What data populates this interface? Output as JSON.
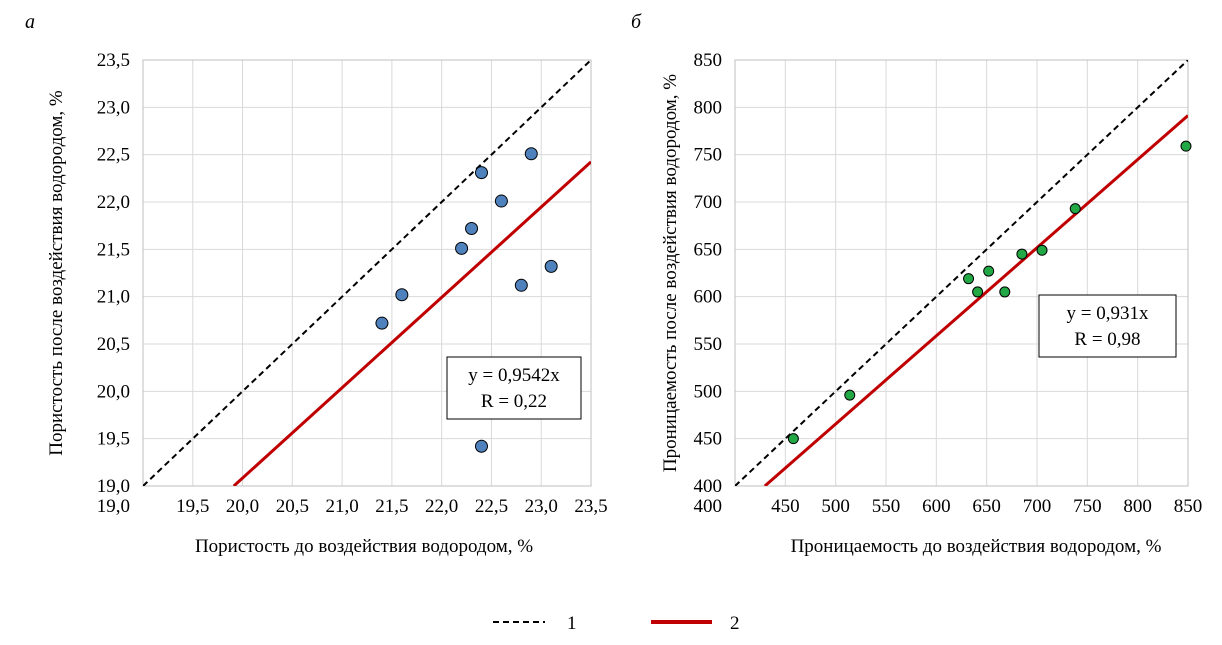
{
  "chart_data": [
    {
      "panel_label": "а",
      "type": "scatter",
      "xlabel": "Пористость до воздействия водородом, %",
      "ylabel": "Пористость после воздействия водородом, %",
      "xlim": [
        19.0,
        23.5
      ],
      "ylim": [
        19.0,
        23.5
      ],
      "xticks": [
        "19,0",
        "19,5",
        "20,0",
        "20,5",
        "21,0",
        "21,5",
        "22,0",
        "22,5",
        "23,0",
        "23,5"
      ],
      "yticks": [
        "19,0",
        "19,5",
        "20,0",
        "20,5",
        "21,0",
        "21,5",
        "22,0",
        "22,5",
        "23,0",
        "23,5"
      ],
      "grid": true,
      "point_color": "#4f81bd",
      "points": [
        {
          "x": 21.4,
          "y": 20.72
        },
        {
          "x": 21.6,
          "y": 21.02
        },
        {
          "x": 22.2,
          "y": 21.51
        },
        {
          "x": 22.3,
          "y": 21.72
        },
        {
          "x": 22.4,
          "y": 22.31
        },
        {
          "x": 22.4,
          "y": 19.42
        },
        {
          "x": 22.6,
          "y": 22.01
        },
        {
          "x": 22.8,
          "y": 21.12
        },
        {
          "x": 22.9,
          "y": 22.51
        },
        {
          "x": 23.1,
          "y": 21.32
        }
      ],
      "fit_slope": 0.9542,
      "equation_line1": "y = 0,9542x",
      "equation_line2": "R = 0,22"
    },
    {
      "panel_label": "б",
      "type": "scatter",
      "xlabel": "Проницаемость до воздействия водородом, %",
      "ylabel": "Проницаемость после воздействия водородом, %",
      "xlim": [
        400,
        850
      ],
      "ylim": [
        400,
        850
      ],
      "xticks": [
        "400",
        "450",
        "500",
        "550",
        "600",
        "650",
        "700",
        "750",
        "800",
        "850"
      ],
      "yticks": [
        "400",
        "450",
        "500",
        "550",
        "600",
        "650",
        "700",
        "750",
        "800",
        "850"
      ],
      "grid": true,
      "point_color": "#22a845",
      "points": [
        {
          "x": 458,
          "y": 450
        },
        {
          "x": 514,
          "y": 496
        },
        {
          "x": 632,
          "y": 619
        },
        {
          "x": 641,
          "y": 605
        },
        {
          "x": 652,
          "y": 627
        },
        {
          "x": 668,
          "y": 605
        },
        {
          "x": 685,
          "y": 645
        },
        {
          "x": 705,
          "y": 649
        },
        {
          "x": 738,
          "y": 693
        },
        {
          "x": 848,
          "y": 759
        }
      ],
      "fit_slope": 0.931,
      "equation_line1": "y = 0,931x",
      "equation_line2": "R = 0,98"
    }
  ],
  "legend": {
    "items": [
      {
        "label": "1",
        "style": "dashed",
        "color": "#000000"
      },
      {
        "label": "2",
        "style": "solid",
        "color": "#c00000"
      }
    ]
  }
}
